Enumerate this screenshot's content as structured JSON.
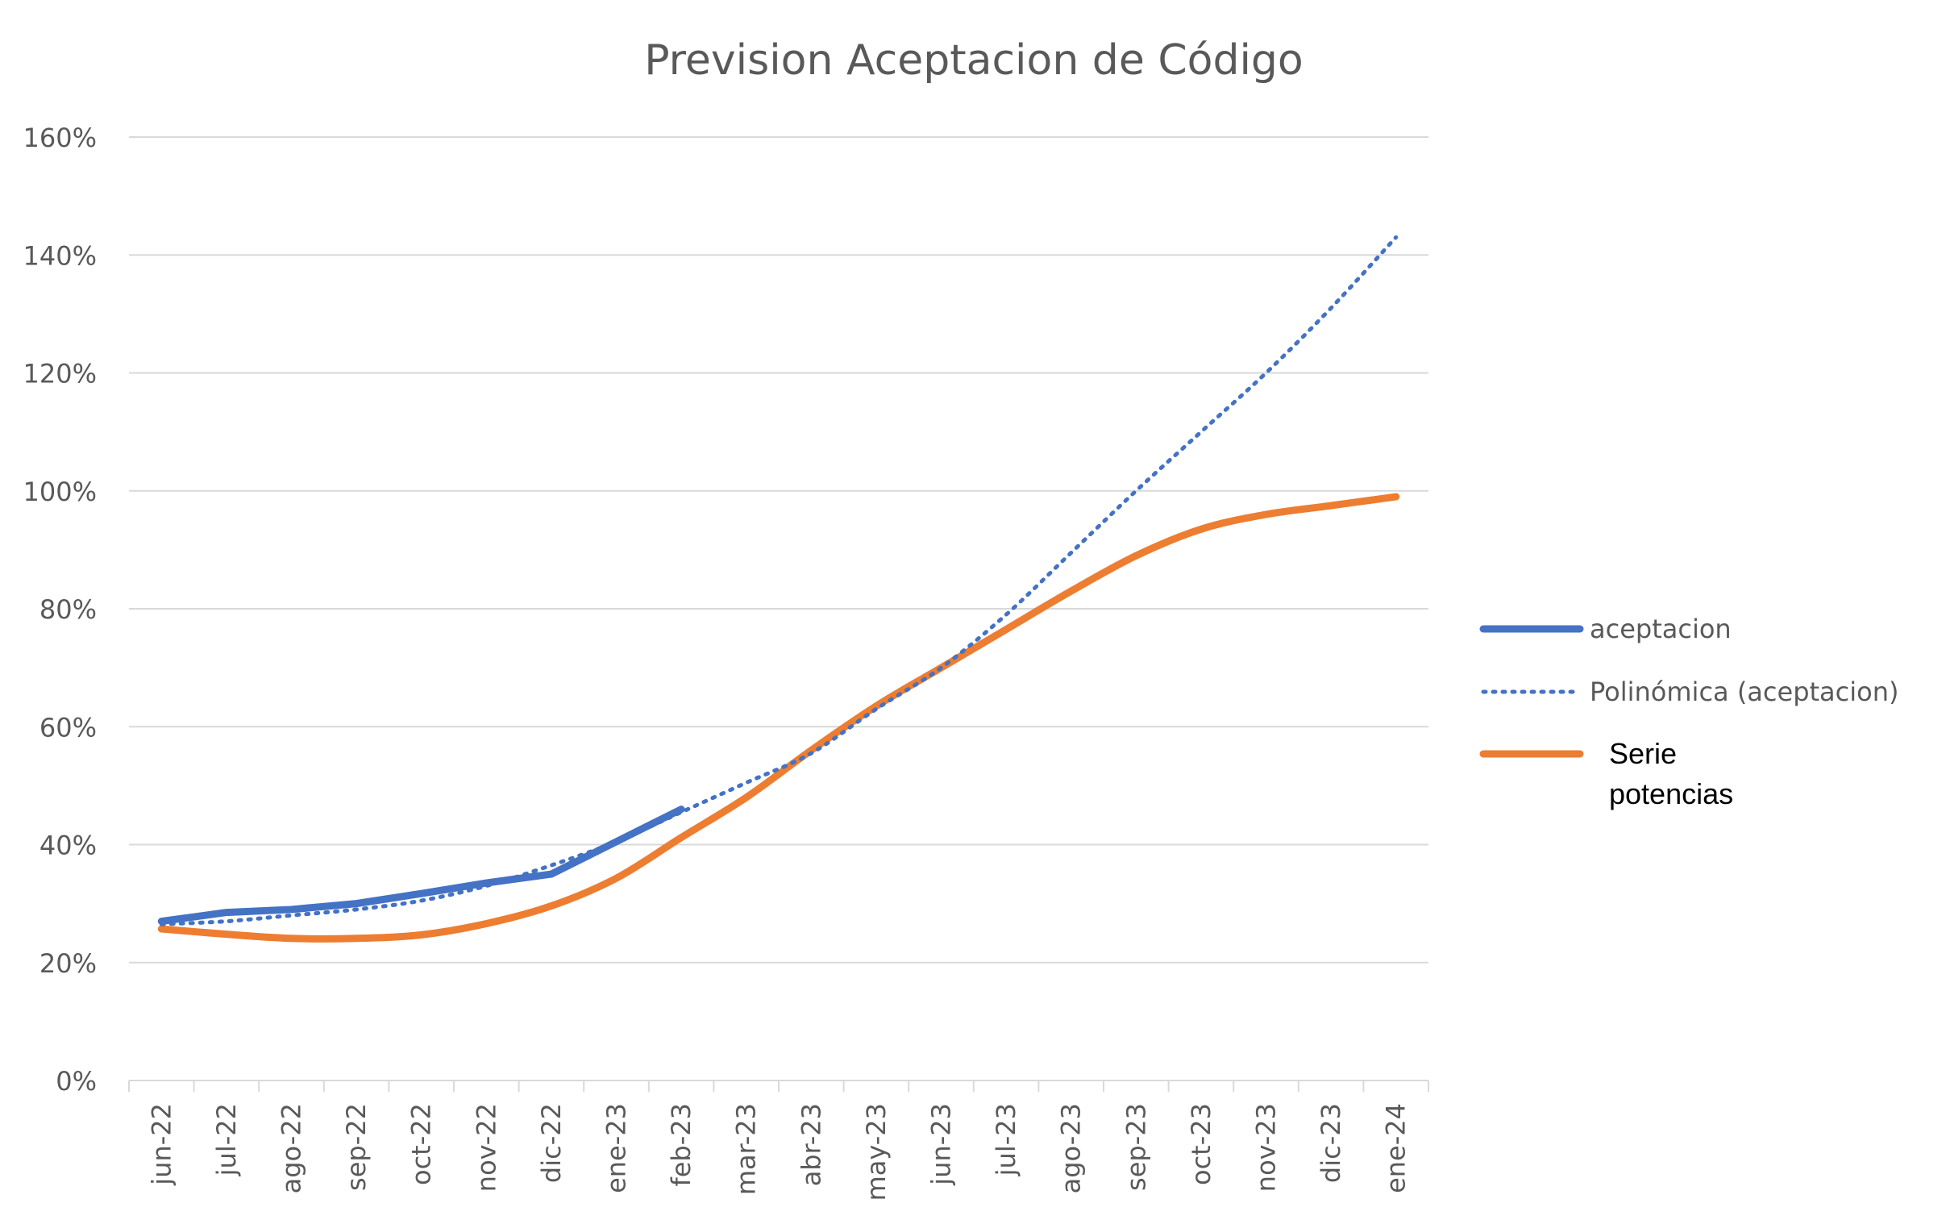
{
  "chart_data": {
    "type": "line",
    "title": "Prevision Aceptacion de Código",
    "xlabel": "",
    "ylabel": "",
    "categories": [
      "jun-22",
      "jul-22",
      "ago-22",
      "sep-22",
      "oct-22",
      "nov-22",
      "dic-22",
      "ene-23",
      "feb-23",
      "mar-23",
      "abr-23",
      "may-23",
      "jun-23",
      "jul-23",
      "ago-23",
      "sep-23",
      "oct-23",
      "nov-23",
      "dic-23",
      "ene-24"
    ],
    "y_ticks": [
      "0%",
      "20%",
      "40%",
      "60%",
      "80%",
      "100%",
      "120%",
      "140%",
      "160%"
    ],
    "ylim": [
      0,
      1.6
    ],
    "grid": true,
    "legend_position": "right",
    "series": [
      {
        "name": "aceptacion",
        "style": "solid",
        "color": "#4472C4",
        "values": [
          0.27,
          0.285,
          0.29,
          0.3,
          0.317,
          0.335,
          0.35,
          0.405,
          0.46,
          null,
          null,
          null,
          null,
          null,
          null,
          null,
          null,
          null,
          null,
          null
        ]
      },
      {
        "name": "Polinómica (aceptacion)",
        "style": "dotted",
        "color": "#4472C4",
        "values": [
          0.265,
          0.27,
          0.28,
          0.29,
          0.305,
          0.33,
          0.365,
          0.405,
          0.455,
          0.505,
          0.555,
          0.63,
          0.7,
          0.79,
          0.895,
          1.0,
          1.1,
          1.2,
          1.31,
          1.43
        ]
      },
      {
        "name": "Serie\npotencias",
        "style": "solid",
        "color": "#ED7D31",
        "values": [
          0.257,
          0.248,
          0.241,
          0.241,
          0.247,
          0.266,
          0.296,
          0.343,
          0.412,
          0.48,
          0.56,
          0.635,
          0.7,
          0.765,
          0.83,
          0.89,
          0.935,
          0.96,
          0.975,
          0.99
        ]
      }
    ]
  },
  "colors": {
    "grid": "#D9D9D9",
    "axis": "#D9D9D9",
    "text": "#595959",
    "legend_text_plain": "#000000"
  }
}
